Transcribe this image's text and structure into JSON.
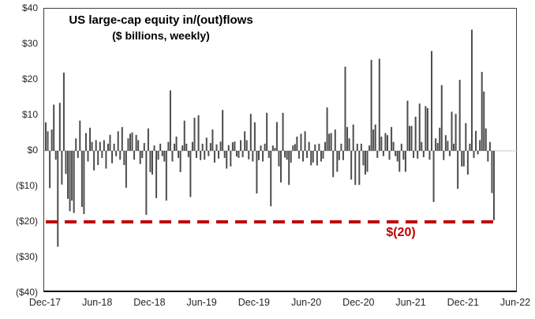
{
  "figure": {
    "title": "US large-cap equity in/(out)flows",
    "subtitle": "($ billions, weekly)",
    "reference_label": "$(20)"
  },
  "chart_data": {
    "type": "bar",
    "title": "US large-cap equity in/(out)flows",
    "subtitle": "($ billions, weekly)",
    "unit": "$ billions",
    "frequency": "weekly",
    "bar_color": "#4d4d4d",
    "zero_line_color": "#c8c8c8",
    "ylim": [
      -40,
      40
    ],
    "grid": "off",
    "yticks": [
      {
        "label": "$40",
        "value": 40
      },
      {
        "label": "$30",
        "value": 30
      },
      {
        "label": "$20",
        "value": 20
      },
      {
        "label": "$10",
        "value": 10
      },
      {
        "label": "$0",
        "value": 0
      },
      {
        "label": "($10)",
        "value": -10
      },
      {
        "label": "($20)",
        "value": -20
      },
      {
        "label": "($30)",
        "value": -30
      },
      {
        "label": "($40)",
        "value": -40
      }
    ],
    "xticks": [
      "Dec-17",
      "Jun-18",
      "Dec-18",
      "Jun-19",
      "Dec-19",
      "Jun-20",
      "Dec-20",
      "Jun-21",
      "Dec-21",
      "Jun-22"
    ],
    "reference_line": {
      "value": -20,
      "label": "$(20)",
      "style": "dashed",
      "color": "#C00000",
      "thickness": 4
    },
    "x_start_label": "Dec-17",
    "x_end_week": 224,
    "weeks_span": 234,
    "values": [
      8,
      5.5,
      -10.5,
      6,
      13,
      -2.5,
      -27,
      13.5,
      -9.5,
      22,
      -6.5,
      -13.5,
      -17,
      -14,
      -17.5,
      3.5,
      -2,
      8.5,
      -15.8,
      -17.8,
      5,
      -3,
      6.5,
      2.5,
      -5.5,
      3,
      -4,
      2.5,
      -2,
      3,
      -5,
      2,
      4.5,
      -3.5,
      2,
      -1.5,
      5.5,
      -2.5,
      6.7,
      -4,
      -10.4,
      3.5,
      4.8,
      5.2,
      -2.5,
      4.5,
      3,
      -3.7,
      -2,
      2.2,
      -18,
      6.3,
      -6,
      -6.7,
      1.5,
      -13.3,
      -2.5,
      2,
      -1.5,
      -3,
      -14,
      2.5,
      17,
      -3,
      2,
      4,
      -2,
      -6,
      1.5,
      8.5,
      2,
      -1.8,
      -13,
      2.5,
      9.3,
      -2,
      10,
      -2.6,
      2,
      -2.5,
      3.7,
      -1.5,
      2.2,
      6,
      -3.3,
      1.8,
      -2.2,
      2.6,
      11.5,
      -2,
      -5,
      1.6,
      -4.4,
      2.4,
      2.6,
      -1.6,
      -2,
      3,
      -1.8,
      5.5,
      3,
      -2.4,
      10.4,
      -3,
      8,
      -12,
      -2.6,
      1.5,
      -3,
      2,
      10.7,
      -2,
      -15.6,
      1.5,
      0.8,
      8.1,
      -4.4,
      -8.9,
      10.7,
      -1.9,
      -2.5,
      -9.6,
      -3.3,
      1.5,
      1.9,
      4,
      -2.2,
      4.8,
      -3,
      5.5,
      -2,
      2.5,
      -4.1,
      -3.3,
      1.8,
      -4.1,
      2,
      -3,
      -2.2,
      2.5,
      12.2,
      4.8,
      5,
      -7.4,
      6,
      -5.9,
      -2.6,
      2,
      -2.6,
      23.7,
      6.7,
      3.5,
      -8.1,
      7.4,
      -9.6,
      2,
      -9.6,
      2,
      -4.1,
      -6.7,
      -5.9,
      1.5,
      25.6,
      6,
      7.4,
      -2,
      25.9,
      4,
      -1.5,
      5,
      4.4,
      -2.5,
      6.7,
      2.5,
      -1.5,
      -3,
      -5.9,
      2,
      -2.5,
      -5.9,
      14.1,
      7,
      7,
      -2,
      9.6,
      -2.2,
      13.3,
      2.5,
      -1.8,
      12.6,
      12,
      -2.5,
      28.1,
      -14.4,
      3.5,
      2.2,
      6.5,
      18.5,
      -2.6,
      4.4,
      2.8,
      -1.5,
      11,
      2,
      10.4,
      -10.7,
      20,
      -4.4,
      -4.4,
      7.8,
      -6.7,
      2,
      34.1,
      -2,
      5.6,
      -1,
      3,
      22.2,
      16.7,
      6.3,
      -3,
      2.5,
      -11.9,
      -19.5
    ]
  }
}
